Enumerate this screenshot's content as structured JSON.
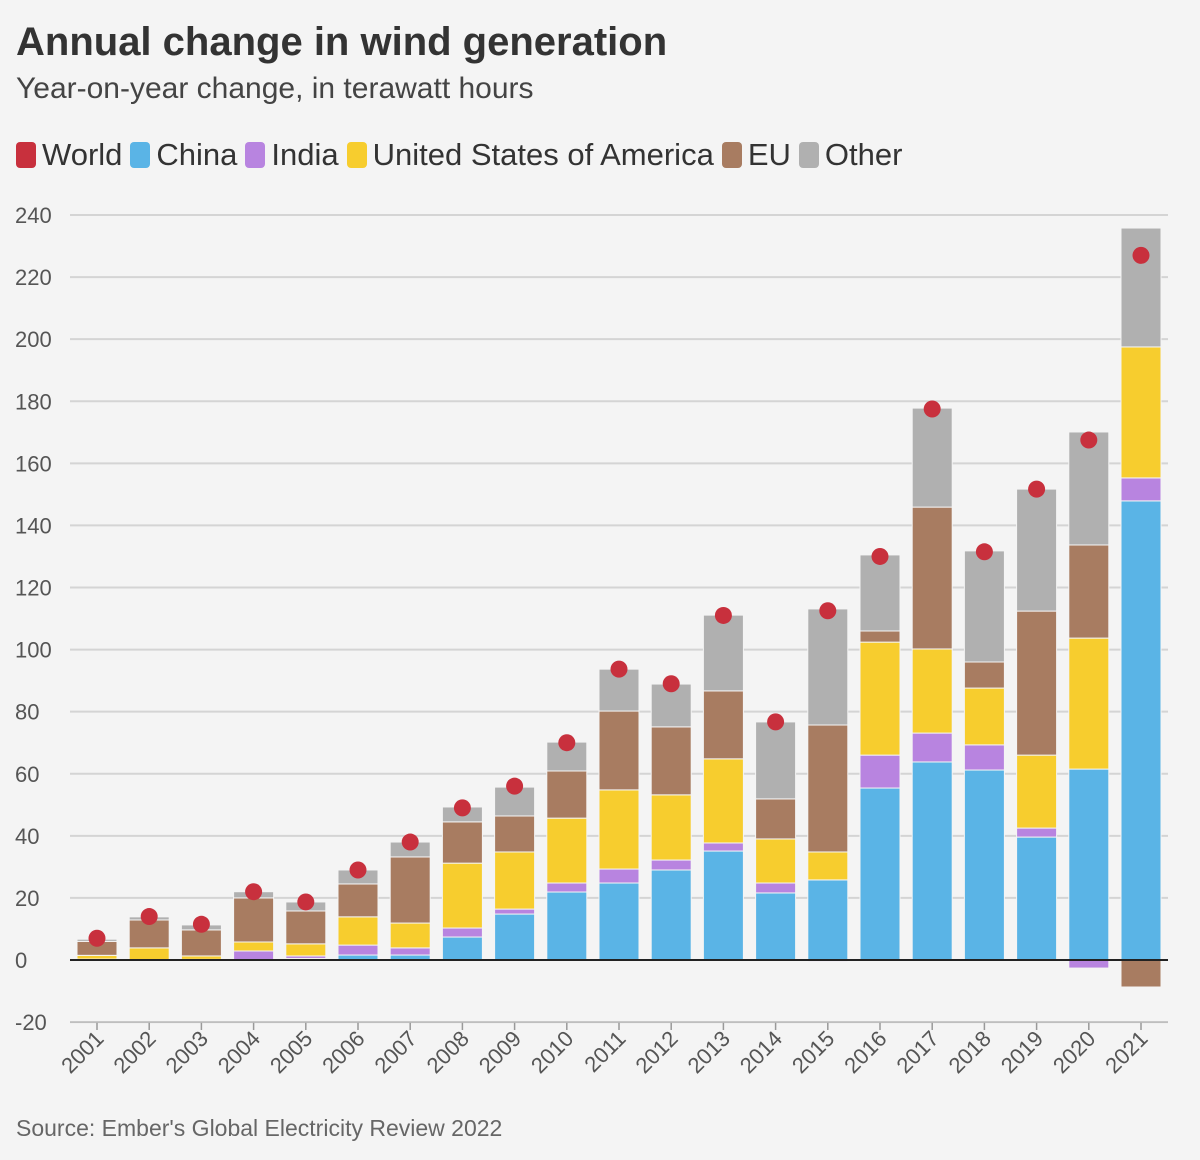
{
  "chart_data": {
    "type": "bar",
    "stacked": true,
    "title": "Annual change in wind generation",
    "subtitle": "Year-on-year change, in terawatt hours",
    "source": "Source: Ember's Global Electricity Review 2022",
    "ylim": [
      -20,
      240
    ],
    "yticks": [
      -20,
      0,
      20,
      40,
      60,
      80,
      100,
      120,
      140,
      160,
      180,
      200,
      220,
      240
    ],
    "grid": true,
    "legend_position": "top-left",
    "categories": [
      "2001",
      "2002",
      "2003",
      "2004",
      "2005",
      "2006",
      "2007",
      "2008",
      "2009",
      "2010",
      "2011",
      "2012",
      "2013",
      "2014",
      "2015",
      "2016",
      "2017",
      "2018",
      "2019",
      "2020",
      "2021"
    ],
    "series": [
      {
        "name": "China",
        "color": "#5ab4e6",
        "values": [
          0,
          0,
          0,
          0,
          0.5,
          1.6,
          1.6,
          7.4,
          14.8,
          21.9,
          24.8,
          29,
          35.1,
          21.6,
          25.8,
          55.4,
          63.8,
          61.2,
          39.6,
          61.5,
          147.9
        ]
      },
      {
        "name": "India",
        "color": "#b884e0",
        "values": [
          0.3,
          0,
          0.2,
          2.9,
          0.8,
          3.2,
          2.3,
          2.9,
          1.6,
          2.9,
          4.5,
          3.2,
          2.6,
          3.2,
          -0.5,
          10.6,
          9.3,
          8.1,
          2.9,
          -2.6,
          7.4
        ]
      },
      {
        "name": "United States of America",
        "color": "#f7cd2e",
        "values": [
          1.2,
          3.9,
          1.1,
          2.9,
          3.9,
          9.1,
          8,
          20.9,
          18.4,
          20.9,
          25.5,
          21,
          27.1,
          14.2,
          9,
          36.4,
          27.1,
          18.3,
          23.5,
          42.2,
          42.2
        ]
      },
      {
        "name": "EU",
        "color": "#a87c61",
        "values": [
          4.5,
          9,
          8.4,
          14.2,
          10.6,
          10.6,
          21.3,
          13.3,
          11.6,
          15.2,
          25.4,
          21.9,
          21.9,
          12.9,
          40.9,
          3.6,
          45.7,
          8.4,
          46.4,
          30,
          -8.7
        ]
      },
      {
        "name": "Other",
        "color": "#b0b0b0",
        "values": [
          0.7,
          1,
          1.6,
          2,
          2.9,
          4.5,
          4.8,
          4.8,
          9.3,
          9.3,
          13.5,
          13.8,
          24.4,
          24.8,
          37.4,
          24.5,
          31.9,
          35.8,
          39.3,
          36.4,
          38.3
        ]
      }
    ],
    "world": {
      "name": "World",
      "color": "#c8303d",
      "values": [
        7,
        14,
        11.5,
        22,
        18.7,
        29,
        38,
        49,
        56,
        70,
        93.7,
        89,
        111,
        76.7,
        112.5,
        130,
        177.5,
        131.5,
        151.7,
        167.5,
        227
      ]
    }
  }
}
